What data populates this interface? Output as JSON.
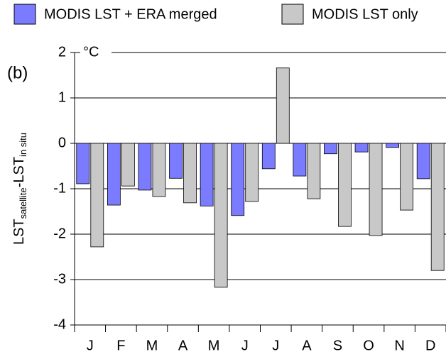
{
  "chart_data": {
    "type": "bar",
    "panel_label": "(b)",
    "unit_label": "°C",
    "y_label": [
      "LST",
      "satellite",
      "-LST",
      "in situ"
    ],
    "categories": [
      "J",
      "F",
      "M",
      "A",
      "M",
      "J",
      "J",
      "A",
      "S",
      "O",
      "N",
      "D"
    ],
    "series": [
      {
        "name": "MODIS LST + ERA merged",
        "color": "#7b7bff",
        "values": [
          -0.89,
          -1.36,
          -1.03,
          -0.77,
          -1.38,
          -1.59,
          -0.56,
          -0.72,
          -0.23,
          -0.19,
          -0.09,
          -0.78
        ]
      },
      {
        "name": "MODIS LST only",
        "color": "#c8c8c8",
        "values": [
          -2.28,
          -0.94,
          -1.17,
          -1.31,
          -3.17,
          -1.28,
          1.66,
          -1.22,
          -1.83,
          -2.03,
          -1.47,
          -2.8
        ]
      }
    ],
    "ylim": [
      -4,
      2
    ],
    "yticks": [
      -4,
      -3,
      -2,
      -1,
      0,
      1,
      2
    ],
    "grid": true
  }
}
